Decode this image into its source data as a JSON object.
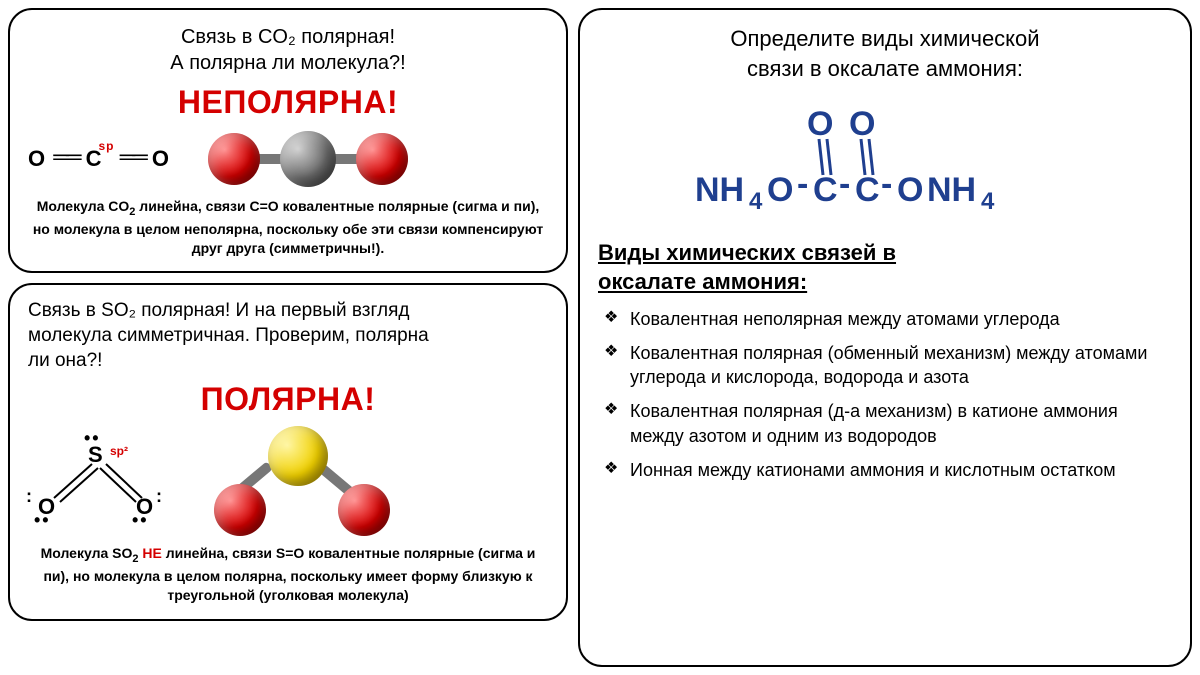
{
  "colors": {
    "red": "#d40000",
    "navy": "#1f3f8f",
    "atom_red": "#d40000",
    "atom_gray": "#6a6a6a",
    "atom_yellow": "#f0d000",
    "border": "#000000",
    "bg": "#ffffff"
  },
  "left": {
    "panel1": {
      "q_line1": "Связь в CO₂ полярная!",
      "q_line2": "А полярна ли молекула?!",
      "verdict": "НЕПОЛЯРНА!",
      "lewis": {
        "left": "O",
        "center": "C",
        "right": "O",
        "sp": "sp"
      },
      "molecule": {
        "type": "linear-3atom",
        "atoms": [
          {
            "color": "atom_red",
            "r": 26
          },
          {
            "color": "atom_gray",
            "r": 28
          },
          {
            "color": "atom_red",
            "r": 26
          }
        ],
        "bond_len": 40
      },
      "desc_html": "Молекула CO<sub>2</sub> линейна, связи C=O ковалентные полярные (сигма и пи), но молекула в целом неполярна, поскольку обе эти связи компенсируют друг друга (симметричны!)."
    },
    "panel2": {
      "q_line1": "Связь в SO₂ полярная! И на первый взгляд",
      "q_line2": "молекула симметричная. Проверим, полярна",
      "q_line3": "ли она?!",
      "verdict": "ПОЛЯРНА!",
      "lewis": {
        "center": "S",
        "left": "O",
        "right": "O",
        "sp": "sp²"
      },
      "molecule": {
        "type": "bent-3atom",
        "atoms": [
          {
            "color": "atom_yellow",
            "r": 30
          },
          {
            "color": "atom_red",
            "r": 26
          },
          {
            "color": "atom_red",
            "r": 26
          }
        ],
        "angle_deg": 119
      },
      "desc_part1": "Молекула SO",
      "desc_not": " НЕ ",
      "desc_part2": "линейна, связи S=O ковалентные полярные (сигма и пи), но молекула в целом полярна, поскольку имеет форму близкую к треугольной (уголковая молекула)"
    }
  },
  "right": {
    "title_l1": "Определите виды химической",
    "title_l2": "связи в оксалате аммония:",
    "formula": {
      "O": "O",
      "NH4": "NH",
      "sub4": "4",
      "C": "C",
      "ONH4": "ONH",
      "color": "#1f3f8f",
      "font_size": 34
    },
    "subhead_l1": "Виды химических связей в",
    "subhead_l2": "оксалате аммония:",
    "items": [
      "Ковалентная неполярная между атомами углерода",
      "Ковалентная полярная (обменный механизм) между атомами углерода и кислорода, водорода и азота",
      "Ковалентная полярная (д-а механизм) в катионе аммония между азотом и одним из водородов",
      "Ионная между катионами аммония и кислотным остатком"
    ]
  }
}
